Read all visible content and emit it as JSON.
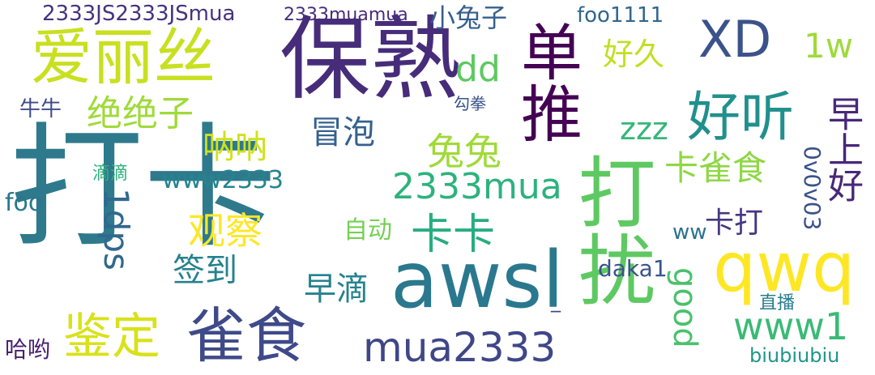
{
  "words": [
    {
      "text": "打卡",
      "color": "#2e7a8c"
    },
    {
      "text": "保熟",
      "color": "#472c7a"
    },
    {
      "text": "爱丽丝",
      "color": "#c8e020"
    },
    {
      "text": "awsl",
      "color": "#2a788e"
    },
    {
      "text": "雀食",
      "color": "#3e4a89"
    },
    {
      "text": "打扰",
      "color": "#5ec962"
    },
    {
      "text": "qwq",
      "color": "#fde725"
    },
    {
      "text": "mua2333",
      "color": "#3f4788"
    },
    {
      "text": "鉴定",
      "color": "#d8e219"
    },
    {
      "text": "单推",
      "color": "#440154"
    },
    {
      "text": "好听",
      "color": "#21908d"
    },
    {
      "text": "XD",
      "color": "#3b528b"
    },
    {
      "text": "2333mua",
      "color": "#2db27d"
    },
    {
      "text": "绝绝子",
      "color": "#a0da39"
    },
    {
      "text": "观察",
      "color": "#fde725"
    },
    {
      "text": "兔兔",
      "color": "#a0da39"
    },
    {
      "text": "卡卡",
      "color": "#27ad81"
    },
    {
      "text": "www1",
      "color": "#3aba76"
    },
    {
      "text": "1dps",
      "color": "#31688e"
    },
    {
      "text": "早上好",
      "color": "#482878"
    },
    {
      "text": "卡雀食",
      "color": "#8fd744"
    },
    {
      "text": "呐呐",
      "color": "#d0e11c"
    },
    {
      "text": "冒泡",
      "color": "#34618d"
    },
    {
      "text": "签到",
      "color": "#26828e"
    },
    {
      "text": "早滴",
      "color": "#26828e"
    },
    {
      "text": "good",
      "color": "#4ac16d"
    },
    {
      "text": "dd",
      "color": "#5ec962"
    },
    {
      "text": "好久",
      "color": "#c2df23"
    },
    {
      "text": "1w",
      "color": "#9fda3a"
    },
    {
      "text": "zzz",
      "color": "#35b779"
    },
    {
      "text": "卡打",
      "color": "#453781"
    },
    {
      "text": "www2333",
      "color": "#25858e"
    },
    {
      "text": "小兔子",
      "color": "#355f8d"
    },
    {
      "text": "daka1",
      "color": "#3a548c"
    },
    {
      "text": "0v0v03",
      "color": "#3b528b"
    },
    {
      "text": "2333JS2333JSmua",
      "color": "#46327e"
    },
    {
      "text": "2333muamua",
      "color": "#472d7b"
    },
    {
      "text": "foo1111",
      "color": "#31668e"
    },
    {
      "text": "牛牛",
      "color": "#3e4c8a"
    },
    {
      "text": "勾拳",
      "color": "#3a538b"
    },
    {
      "text": "滴滴",
      "color": "#2db27d"
    },
    {
      "text": "foo",
      "color": "#2a768e"
    },
    {
      "text": "自动",
      "color": "#75d054"
    },
    {
      "text": "ww",
      "color": "#2c728e"
    },
    {
      "text": "直播",
      "color": "#287d8e"
    },
    {
      "text": "biubiubiu",
      "color": "#1f968b"
    },
    {
      "text": "哈哟",
      "color": "#481d6f"
    },
    {
      "text": "_",
      "color": "#3f4788"
    }
  ]
}
